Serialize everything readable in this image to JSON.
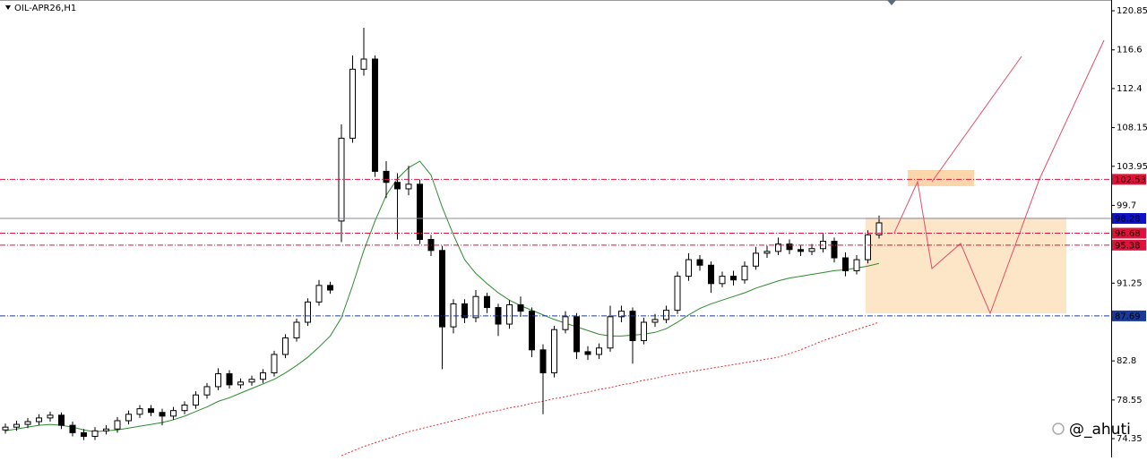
{
  "chart_data": {
    "type": "candlestick",
    "title": "OIL-APR26,H1",
    "watermark": "@_ahuti",
    "ylim": [
      72.31,
      122.02
    ],
    "yticks": [
      120.85,
      116.6,
      112.4,
      108.15,
      103.95,
      99.7,
      91.25,
      82.8,
      78.55,
      74.35
    ],
    "candles": [
      [
        75.3,
        76.0,
        74.9,
        75.6
      ],
      [
        75.6,
        76.3,
        75.2,
        75.9
      ],
      [
        75.9,
        76.6,
        75.5,
        76.2
      ],
      [
        76.2,
        77.0,
        75.8,
        76.6
      ],
      [
        76.6,
        77.3,
        76.2,
        76.9
      ],
      [
        76.9,
        77.2,
        75.4,
        75.8
      ],
      [
        75.8,
        76.2,
        74.6,
        75.0
      ],
      [
        75.0,
        75.4,
        74.2,
        74.6
      ],
      [
        74.6,
        75.6,
        74.2,
        75.2
      ],
      [
        75.2,
        75.8,
        74.8,
        75.4
      ],
      [
        75.4,
        76.7,
        75.0,
        76.3
      ],
      [
        76.3,
        77.4,
        75.9,
        77.0
      ],
      [
        77.0,
        78.0,
        76.6,
        77.6
      ],
      [
        77.6,
        78.0,
        76.8,
        77.2
      ],
      [
        77.2,
        77.6,
        75.8,
        76.8
      ],
      [
        76.8,
        77.8,
        76.4,
        77.4
      ],
      [
        77.4,
        78.4,
        77.0,
        78.0
      ],
      [
        78.0,
        79.5,
        77.6,
        79.1
      ],
      [
        79.1,
        80.4,
        78.7,
        80.0
      ],
      [
        80.0,
        82.0,
        79.6,
        81.4
      ],
      [
        81.4,
        81.8,
        79.8,
        80.2
      ],
      [
        80.2,
        80.9,
        79.8,
        80.5
      ],
      [
        80.5,
        81.2,
        80.1,
        80.8
      ],
      [
        80.8,
        81.9,
        80.4,
        81.5
      ],
      [
        81.5,
        83.9,
        81.1,
        83.5
      ],
      [
        83.5,
        85.7,
        83.1,
        85.3
      ],
      [
        85.3,
        87.4,
        84.9,
        87.0
      ],
      [
        87.0,
        89.6,
        86.6,
        89.2
      ],
      [
        89.2,
        91.6,
        88.8,
        91.0
      ],
      [
        91.0,
        91.4,
        90.1,
        90.5
      ],
      [
        98.0,
        108.5,
        95.7,
        107.0
      ],
      [
        107.0,
        116.0,
        106.5,
        114.5
      ],
      [
        114.5,
        119.0,
        113.8,
        115.6
      ],
      [
        115.6,
        116.0,
        102.8,
        103.4
      ],
      [
        103.4,
        104.5,
        100.5,
        102.2
      ],
      [
        102.2,
        103.2,
        96.0,
        101.5
      ],
      [
        101.5,
        104.0,
        100.8,
        102.0
      ],
      [
        102.0,
        102.5,
        95.5,
        96.0
      ],
      [
        96.0,
        96.5,
        94.2,
        94.8
      ],
      [
        94.8,
        95.3,
        81.9,
        86.5
      ],
      [
        86.5,
        89.5,
        85.8,
        89.0
      ],
      [
        89.0,
        89.5,
        86.9,
        87.5
      ],
      [
        87.5,
        90.5,
        87.0,
        89.8
      ],
      [
        89.8,
        90.2,
        88.0,
        88.6
      ],
      [
        88.6,
        89.0,
        85.5,
        86.8
      ],
      [
        86.8,
        89.4,
        86.3,
        88.9
      ],
      [
        88.9,
        89.8,
        87.6,
        88.2
      ],
      [
        88.2,
        88.6,
        83.2,
        84.0
      ],
      [
        84.0,
        84.6,
        77.0,
        81.5
      ],
      [
        81.5,
        86.6,
        81.0,
        86.2
      ],
      [
        86.2,
        88.2,
        85.8,
        87.6
      ],
      [
        87.6,
        88.0,
        83.0,
        83.8
      ],
      [
        83.8,
        84.4,
        82.9,
        83.5
      ],
      [
        83.5,
        84.7,
        83.0,
        84.2
      ],
      [
        84.2,
        88.8,
        83.8,
        87.6
      ],
      [
        87.6,
        88.8,
        87.0,
        88.2
      ],
      [
        88.2,
        88.6,
        82.5,
        85.0
      ],
      [
        85.0,
        87.5,
        84.6,
        87.0
      ],
      [
        87.0,
        87.9,
        86.5,
        87.3
      ],
      [
        87.3,
        88.8,
        86.9,
        88.3
      ],
      [
        88.3,
        92.5,
        87.9,
        92.0
      ],
      [
        92.0,
        94.5,
        91.5,
        93.8
      ],
      [
        93.8,
        94.3,
        92.6,
        93.2
      ],
      [
        93.2,
        93.6,
        90.2,
        91.2
      ],
      [
        91.2,
        92.5,
        90.8,
        92.0
      ],
      [
        92.0,
        92.6,
        91.0,
        91.6
      ],
      [
        91.6,
        93.6,
        91.2,
        93.1
      ],
      [
        93.1,
        95.2,
        92.7,
        94.5
      ],
      [
        94.5,
        95.3,
        94.0,
        94.7
      ],
      [
        94.7,
        96.2,
        94.3,
        95.5
      ],
      [
        95.5,
        96.0,
        94.4,
        94.9
      ],
      [
        94.9,
        95.4,
        94.2,
        94.7
      ],
      [
        94.7,
        95.5,
        94.3,
        95.0
      ],
      [
        95.0,
        96.6,
        94.6,
        95.8
      ],
      [
        95.8,
        96.2,
        93.5,
        94.0
      ],
      [
        94.0,
        94.6,
        92.0,
        92.6
      ],
      [
        92.6,
        94.3,
        92.2,
        93.8
      ],
      [
        93.8,
        97.0,
        93.4,
        96.5
      ],
      [
        96.5,
        98.6,
        96.1,
        97.8
      ]
    ],
    "series": [
      {
        "color": "#2e8b2e",
        "style": "solid",
        "values": [
          75.2,
          75.4,
          75.6,
          75.8,
          75.9,
          75.8,
          75.6,
          75.3,
          75.1,
          75.2,
          75.3,
          75.5,
          75.7,
          75.9,
          76.1,
          76.4,
          76.8,
          77.3,
          77.8,
          78.4,
          78.8,
          79.3,
          79.8,
          80.3,
          80.8,
          81.5,
          82.3,
          83.2,
          84.3,
          85.5,
          87.5,
          91.0,
          94.8,
          98.0,
          100.8,
          102.6,
          103.8,
          104.5,
          103.0,
          99.5,
          96.5,
          93.8,
          92.3,
          91.2,
          90.2,
          89.4,
          88.8,
          88.3,
          87.8,
          87.3,
          86.9,
          86.5,
          86.1,
          85.7,
          85.5,
          85.5,
          85.6,
          85.7,
          85.9,
          86.3,
          87.0,
          87.8,
          88.5,
          89.0,
          89.4,
          89.8,
          90.2,
          90.7,
          91.1,
          91.5,
          91.8,
          92.0,
          92.2,
          92.4,
          92.6,
          92.7,
          92.9,
          93.1,
          93.4
        ]
      },
      {
        "color": "#e03030",
        "style": "dotted",
        "values": [
          null,
          null,
          null,
          null,
          null,
          null,
          null,
          null,
          null,
          null,
          null,
          null,
          null,
          null,
          null,
          null,
          null,
          null,
          null,
          null,
          null,
          null,
          null,
          null,
          null,
          null,
          null,
          null,
          null,
          null,
          72.5,
          73.0,
          73.5,
          73.9,
          74.3,
          74.7,
          75.1,
          75.4,
          75.7,
          76.0,
          76.3,
          76.6,
          76.9,
          77.2,
          77.4,
          77.7,
          77.9,
          78.2,
          78.4,
          78.7,
          78.9,
          79.2,
          79.4,
          79.7,
          79.9,
          80.2,
          80.4,
          80.7,
          80.9,
          81.2,
          81.4,
          81.6,
          81.8,
          82.0,
          82.2,
          82.4,
          82.6,
          82.8,
          83.0,
          83.2,
          83.6,
          84.0,
          84.5,
          85.0,
          85.4,
          85.8,
          86.2,
          86.6,
          87.0
        ]
      }
    ],
    "levels": [
      {
        "value": 102.53,
        "color": "#dc143c",
        "style": "dashdot"
      },
      {
        "value": 98.28,
        "color": "#1010c8",
        "style": "solid"
      },
      {
        "value": 96.68,
        "color": "#dc143c",
        "style": "dashdot"
      },
      {
        "value": 95.38,
        "color": "#dc143c",
        "style": "dashdot"
      },
      {
        "value": 87.69,
        "color": "#1a3a9a",
        "style": "dashdot"
      }
    ]
  }
}
